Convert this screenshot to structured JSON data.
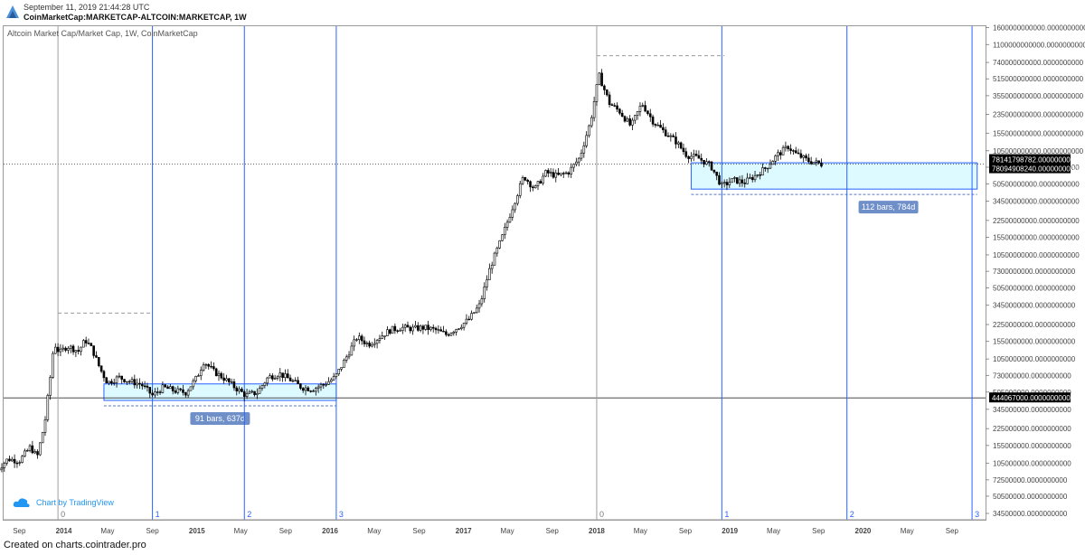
{
  "header": {
    "timestamp": "September 11, 2019 21:44:28 UTC",
    "symbol": "CoinMarketCap:MARKETCAP-ALTCOIN:MARKETCAP, 1W"
  },
  "study_title": "Altcoin Market Cap/Market Cap, 1W, CoinMarketCap",
  "branding": {
    "text": "Chart by TradingView",
    "icon": "tradingview-cloud-icon"
  },
  "footer": "Created on charts.cointrader.pro",
  "colors": {
    "candle": "#000000",
    "cycle_line": "#2962ff",
    "range_fill": "#dcfaff",
    "range_border": "#2962ff",
    "label_bg": "#6f8fc9",
    "price_label_bg": "#000000"
  },
  "chart_data": {
    "type": "candlestick",
    "title": "Altcoin Market Cap/Market Cap, 1W, CoinMarketCap",
    "scale": "log",
    "x_axis": {
      "ticks": [
        "Sep",
        "2014",
        "May",
        "Sep",
        "2015",
        "May",
        "Sep",
        "2016",
        "May",
        "Sep",
        "2017",
        "May",
        "Sep",
        "2018",
        "May",
        "Sep",
        "2019",
        "May",
        "Sep",
        "2020",
        "May",
        "Sep"
      ],
      "tick_dates": [
        "2013-09-01",
        "2014-01-01",
        "2014-05-01",
        "2014-09-01",
        "2015-01-01",
        "2015-05-01",
        "2015-09-01",
        "2016-01-01",
        "2016-05-01",
        "2016-09-01",
        "2017-01-01",
        "2017-05-01",
        "2017-09-01",
        "2018-01-01",
        "2018-05-01",
        "2018-09-01",
        "2019-01-01",
        "2019-05-01",
        "2019-09-01",
        "2020-01-01",
        "2020-05-01",
        "2020-09-01"
      ]
    },
    "y_axis": {
      "ticks": [
        "1600000000000.0000000000",
        "1100000000000.0000000000",
        "740000000000.0000000000",
        "515000000000.0000000000",
        "355000000000.0000000000",
        "235000000000.0000000000",
        "155000000000.0000000000",
        "105000000000.0000000000",
        "73000000000.0000000000",
        "50500000000.0000000000",
        "34500000000.0000000000",
        "22500000000.0000000000",
        "15500000000.0000000000",
        "10500000000.0000000000",
        "7300000000.0000000000",
        "5050000000.0000000000",
        "3450000000.0000000000",
        "2250000000.0000000000",
        "1550000000.0000000000",
        "1050000000.0000000000",
        "730000000.0000000000",
        "505000000.0000000000",
        "345000000.0000000000",
        "225000000.0000000000",
        "155000000.0000000000",
        "105000000.0000000000",
        "72500000.0000000000",
        "50500000.0000000000",
        "34500000.0000000000"
      ],
      "tick_values": [
        1600000000000,
        1100000000000,
        740000000000,
        515000000000,
        355000000000,
        235000000000,
        155000000000,
        105000000000,
        73000000000,
        50500000000,
        34500000000,
        22500000000,
        15500000000,
        10500000000,
        7300000000,
        5050000000,
        3450000000,
        2250000000,
        1550000000,
        1050000000,
        730000000,
        505000000,
        345000000,
        225000000,
        155000000,
        105000000,
        72500000,
        50500000,
        34500000
      ]
    },
    "price_labels": [
      {
        "text": "78141798782.0000000000",
        "value": 78141798782
      },
      {
        "text": "78094908240.0000000000",
        "value": 78094908240
      },
      {
        "text": "444067000.0000000000",
        "value": 444067000
      }
    ],
    "cycle_markers": [
      {
        "label": "0",
        "date": "2013-12-16",
        "kind": "anchor"
      },
      {
        "label": "1",
        "date": "2014-09-01",
        "kind": "cycle"
      },
      {
        "label": "2",
        "date": "2015-05-11",
        "kind": "cycle"
      },
      {
        "label": "3",
        "date": "2016-01-18",
        "kind": "cycle"
      },
      {
        "label": "0",
        "date": "2018-01-01",
        "kind": "anchor"
      },
      {
        "label": "1",
        "date": "2018-12-10",
        "kind": "cycle"
      },
      {
        "label": "2",
        "date": "2019-11-18",
        "kind": "cycle"
      },
      {
        "label": "3",
        "date": "2020-10-26",
        "kind": "cycle"
      }
    ],
    "ranges": [
      {
        "label": "91 bars, 637d",
        "start": "2014-04-21",
        "end": "2016-01-18",
        "high": 605000000,
        "low": 420000000
      },
      {
        "label": "112 bars, 784d",
        "start": "2018-09-17",
        "end": "2020-11-09",
        "high": 80500000000,
        "low": 45000000000
      }
    ],
    "peak_markers": [
      {
        "start": "2013-12-16",
        "end": "2014-09-01",
        "value": 2900000000
      },
      {
        "start": "2018-01-01",
        "end": "2018-12-17",
        "value": 860000000000
      }
    ],
    "horizontal_lines": [
      {
        "value": 78000000000,
        "style": "dotted"
      },
      {
        "value": 444067000,
        "style": "solid"
      }
    ],
    "series": [
      {
        "date": "2013-07-01",
        "value": 90000000
      },
      {
        "date": "2013-08-01",
        "value": 115000000
      },
      {
        "date": "2013-09-01",
        "value": 110000000
      },
      {
        "date": "2013-10-01",
        "value": 150000000
      },
      {
        "date": "2013-10-20",
        "value": 120000000
      },
      {
        "date": "2013-11-10",
        "value": 260000000
      },
      {
        "date": "2013-11-25",
        "value": 700000000
      },
      {
        "date": "2013-12-05",
        "value": 1500000000
      },
      {
        "date": "2013-12-20",
        "value": 1200000000
      },
      {
        "date": "2014-01-10",
        "value": 1400000000
      },
      {
        "date": "2014-02-10",
        "value": 1250000000
      },
      {
        "date": "2014-03-01",
        "value": 1600000000
      },
      {
        "date": "2014-03-20",
        "value": 1300000000
      },
      {
        "date": "2014-04-10",
        "value": 850000000
      },
      {
        "date": "2014-05-01",
        "value": 620000000
      },
      {
        "date": "2014-06-01",
        "value": 700000000
      },
      {
        "date": "2014-07-01",
        "value": 640000000
      },
      {
        "date": "2014-08-01",
        "value": 600000000
      },
      {
        "date": "2014-09-01",
        "value": 470000000
      },
      {
        "date": "2014-10-01",
        "value": 560000000
      },
      {
        "date": "2014-11-01",
        "value": 520000000
      },
      {
        "date": "2014-12-01",
        "value": 500000000
      },
      {
        "date": "2015-01-01",
        "value": 700000000
      },
      {
        "date": "2015-01-20",
        "value": 1000000000
      },
      {
        "date": "2015-02-15",
        "value": 800000000
      },
      {
        "date": "2015-03-15",
        "value": 690000000
      },
      {
        "date": "2015-04-15",
        "value": 560000000
      },
      {
        "date": "2015-05-15",
        "value": 470000000
      },
      {
        "date": "2015-06-15",
        "value": 500000000
      },
      {
        "date": "2015-07-15",
        "value": 700000000
      },
      {
        "date": "2015-08-15",
        "value": 760000000
      },
      {
        "date": "2015-09-15",
        "value": 660000000
      },
      {
        "date": "2015-10-15",
        "value": 560000000
      },
      {
        "date": "2015-11-15",
        "value": 540000000
      },
      {
        "date": "2015-12-15",
        "value": 600000000
      },
      {
        "date": "2016-01-15",
        "value": 700000000
      },
      {
        "date": "2016-02-15",
        "value": 1100000000
      },
      {
        "date": "2016-03-15",
        "value": 1700000000
      },
      {
        "date": "2016-04-15",
        "value": 1450000000
      },
      {
        "date": "2016-05-15",
        "value": 1700000000
      },
      {
        "date": "2016-06-15",
        "value": 2000000000
      },
      {
        "date": "2016-07-15",
        "value": 2100000000
      },
      {
        "date": "2016-08-15",
        "value": 2050000000
      },
      {
        "date": "2016-09-15",
        "value": 2100000000
      },
      {
        "date": "2016-10-15",
        "value": 2000000000
      },
      {
        "date": "2016-11-15",
        "value": 1800000000
      },
      {
        "date": "2016-12-15",
        "value": 2100000000
      },
      {
        "date": "2017-01-15",
        "value": 2500000000
      },
      {
        "date": "2017-02-15",
        "value": 3500000000
      },
      {
        "date": "2017-03-15",
        "value": 8000000000
      },
      {
        "date": "2017-04-15",
        "value": 15000000000
      },
      {
        "date": "2017-05-15",
        "value": 30000000000
      },
      {
        "date": "2017-06-15",
        "value": 60000000000
      },
      {
        "date": "2017-07-15",
        "value": 45000000000
      },
      {
        "date": "2017-08-15",
        "value": 65000000000
      },
      {
        "date": "2017-09-15",
        "value": 60000000000
      },
      {
        "date": "2017-10-15",
        "value": 65000000000
      },
      {
        "date": "2017-11-15",
        "value": 90000000000
      },
      {
        "date": "2017-12-15",
        "value": 200000000000
      },
      {
        "date": "2018-01-07",
        "value": 560000000000
      },
      {
        "date": "2018-02-05",
        "value": 300000000000
      },
      {
        "date": "2018-03-05",
        "value": 250000000000
      },
      {
        "date": "2018-04-05",
        "value": 180000000000
      },
      {
        "date": "2018-05-05",
        "value": 300000000000
      },
      {
        "date": "2018-06-05",
        "value": 200000000000
      },
      {
        "date": "2018-07-05",
        "value": 160000000000
      },
      {
        "date": "2018-08-05",
        "value": 130000000000
      },
      {
        "date": "2018-09-05",
        "value": 95000000000
      },
      {
        "date": "2018-10-05",
        "value": 90000000000
      },
      {
        "date": "2018-11-10",
        "value": 75000000000
      },
      {
        "date": "2018-12-10",
        "value": 48000000000
      },
      {
        "date": "2019-01-10",
        "value": 55000000000
      },
      {
        "date": "2019-02-10",
        "value": 52000000000
      },
      {
        "date": "2019-03-10",
        "value": 60000000000
      },
      {
        "date": "2019-04-10",
        "value": 72000000000
      },
      {
        "date": "2019-05-10",
        "value": 95000000000
      },
      {
        "date": "2019-06-10",
        "value": 115000000000
      },
      {
        "date": "2019-07-01",
        "value": 98000000000
      },
      {
        "date": "2019-08-01",
        "value": 85000000000
      },
      {
        "date": "2019-09-09",
        "value": 78000000000
      }
    ]
  }
}
